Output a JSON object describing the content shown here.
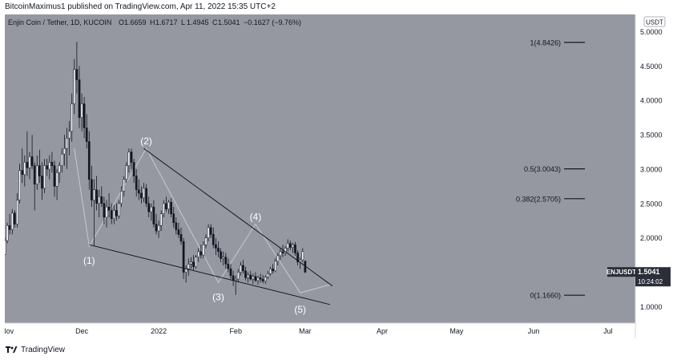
{
  "header": {
    "text": "BitcoinMaximus1 published on TradingView.com, Apr 11, 2022 15:35 UTC+2"
  },
  "footer": {
    "brand": "TradingView",
    "logo_icon": "tradingview-logo-icon"
  },
  "colors": {
    "background": "#9598a1",
    "up": "#ffffff",
    "down": "#131722",
    "line": "#131722",
    "wave_line": "#c7c9cf",
    "text_light": "#ffffff",
    "axis_bg": "#ffffff"
  },
  "chart_data": {
    "type": "candlestick",
    "symbol_line": {
      "symbol": "Enjin Coin / Tether, 1D, KUCOIN",
      "ohlc": [
        {
          "label": "O",
          "value": "1.6659"
        },
        {
          "label": "H",
          "value": "1.6717"
        },
        {
          "label": "L",
          "value": "1.4945"
        },
        {
          "label": "C",
          "value": "1.5041"
        }
      ],
      "change": "−0.1627 (−9.76%)"
    },
    "currency": "USDT",
    "y_ticks": [
      "5.0000",
      "4.5000",
      "4.0000",
      "3.5000",
      "3.0000",
      "2.5000",
      "2.0000",
      "1.5000",
      "1.0000"
    ],
    "x_ticks": [
      "Nov",
      "Dec",
      "2022",
      "Feb",
      "Mar",
      "Apr",
      "May",
      "Jun",
      "Jul"
    ],
    "x_tick_dates": [
      "2021-11-01",
      "2021-12-01",
      "2022-01-01",
      "2022-02-01",
      "2022-03-01",
      "2022-04-01",
      "2022-05-01",
      "2022-06-01",
      "2022-07-01"
    ],
    "ylim": [
      0.76,
      5.25
    ],
    "xlim": [
      "2021-10-31",
      "2022-07-12"
    ],
    "last_price": {
      "ticker": "ENJUSDT",
      "value": "1.5041",
      "countdown": "10:24:02"
    },
    "fib_levels": [
      {
        "label": "1(4.8426)",
        "value": 4.8426
      },
      {
        "label": "0.5(3.0043)",
        "value": 3.0043
      },
      {
        "label": "0.382(2.5705)",
        "value": 2.5705
      },
      {
        "label": "0(1.1660)",
        "value": 1.166
      }
    ],
    "wave_labels": [
      {
        "label": "(1)",
        "date": "2021-12-04",
        "value": 1.88
      },
      {
        "label": "(2)",
        "date": "2021-12-27",
        "value": 3.3
      },
      {
        "label": "(3)",
        "date": "2022-01-25",
        "value": 1.35
      },
      {
        "label": "(4)",
        "date": "2022-02-09",
        "value": 2.2
      },
      {
        "label": "(5)",
        "date": "2022-02-27",
        "value": 1.17
      }
    ],
    "trendlines": [
      {
        "from": {
          "date": "2021-12-04",
          "value": 1.9
        },
        "to": {
          "date": "2022-03-11",
          "value": 1.03
        }
      },
      {
        "from": {
          "date": "2021-12-26",
          "value": 3.3
        },
        "to": {
          "date": "2022-03-12",
          "value": 1.3
        }
      }
    ],
    "wave_path": [
      {
        "date": "2021-11-28",
        "value": 3.3
      },
      {
        "date": "2021-12-04",
        "value": 1.88
      },
      {
        "date": "2021-12-27",
        "value": 3.3
      },
      {
        "date": "2022-01-25",
        "value": 1.35
      },
      {
        "date": "2022-02-09",
        "value": 2.2
      },
      {
        "date": "2022-02-27",
        "value": 1.2
      },
      {
        "date": "2022-03-11",
        "value": 1.32
      }
    ],
    "start_date": "2021-10-31",
    "candles": [
      [
        1.76,
        2.0,
        1.75,
        1.96
      ],
      [
        1.96,
        2.22,
        1.92,
        2.18
      ],
      [
        2.18,
        2.35,
        2.05,
        2.12
      ],
      [
        2.12,
        2.42,
        2.05,
        2.36
      ],
      [
        2.36,
        2.4,
        2.15,
        2.2
      ],
      [
        2.2,
        2.65,
        2.15,
        2.55
      ],
      [
        2.55,
        3.08,
        2.5,
        2.98
      ],
      [
        2.98,
        3.3,
        2.8,
        2.92
      ],
      [
        2.92,
        3.2,
        2.75,
        3.1
      ],
      [
        3.1,
        3.55,
        2.9,
        3.02
      ],
      [
        3.02,
        3.25,
        2.85,
        3.18
      ],
      [
        3.18,
        3.5,
        3.0,
        3.05
      ],
      [
        3.05,
        3.1,
        2.4,
        2.78
      ],
      [
        2.78,
        3.2,
        2.7,
        3.05
      ],
      [
        3.05,
        3.28,
        2.8,
        2.9
      ],
      [
        2.9,
        3.1,
        2.55,
        2.72
      ],
      [
        2.72,
        3.15,
        2.65,
        3.05
      ],
      [
        3.05,
        3.15,
        2.9,
        3.0
      ],
      [
        3.0,
        3.2,
        2.85,
        3.1
      ],
      [
        3.1,
        3.25,
        2.95,
        3.05
      ],
      [
        3.05,
        3.12,
        2.6,
        2.75
      ],
      [
        2.75,
        3.0,
        2.55,
        2.95
      ],
      [
        2.95,
        3.1,
        2.8,
        3.05
      ],
      [
        3.05,
        3.3,
        2.95,
        3.22
      ],
      [
        3.22,
        3.5,
        3.05,
        3.3
      ],
      [
        3.3,
        3.6,
        3.0,
        3.45
      ],
      [
        3.45,
        3.7,
        3.2,
        3.55
      ],
      [
        3.55,
        4.1,
        3.4,
        3.95
      ],
      [
        3.95,
        4.6,
        3.8,
        4.45
      ],
      [
        4.45,
        4.85,
        4.1,
        4.3
      ],
      [
        4.3,
        4.5,
        3.6,
        3.75
      ],
      [
        3.75,
        4.1,
        3.55,
        3.95
      ],
      [
        3.95,
        4.05,
        3.45,
        3.6
      ],
      [
        3.6,
        3.8,
        3.3,
        3.4
      ],
      [
        3.4,
        3.55,
        2.7,
        2.85
      ],
      [
        2.85,
        3.05,
        2.45,
        2.55
      ],
      [
        2.55,
        2.85,
        1.88,
        2.7
      ],
      [
        2.7,
        2.9,
        2.4,
        2.5
      ],
      [
        2.5,
        2.7,
        2.3,
        2.6
      ],
      [
        2.6,
        2.75,
        2.45,
        2.5
      ],
      [
        2.5,
        2.6,
        2.2,
        2.3
      ],
      [
        2.3,
        2.55,
        2.15,
        2.45
      ],
      [
        2.45,
        2.65,
        2.3,
        2.4
      ],
      [
        2.4,
        2.5,
        2.2,
        2.28
      ],
      [
        2.28,
        2.48,
        2.2,
        2.4
      ],
      [
        2.4,
        2.5,
        2.25,
        2.32
      ],
      [
        2.32,
        2.55,
        2.28,
        2.5
      ],
      [
        2.5,
        2.75,
        2.45,
        2.68
      ],
      [
        2.68,
        2.9,
        2.6,
        2.85
      ],
      [
        2.85,
        3.1,
        2.8,
        3.05
      ],
      [
        3.05,
        3.3,
        2.95,
        3.25
      ],
      [
        3.25,
        3.3,
        3.0,
        3.1
      ],
      [
        3.1,
        3.15,
        2.8,
        2.9
      ],
      [
        2.9,
        3.0,
        2.6,
        2.7
      ],
      [
        2.7,
        2.85,
        2.55,
        2.65
      ],
      [
        2.65,
        2.75,
        2.5,
        2.58
      ],
      [
        2.58,
        2.8,
        2.52,
        2.72
      ],
      [
        2.72,
        2.78,
        2.45,
        2.5
      ],
      [
        2.5,
        2.6,
        2.3,
        2.38
      ],
      [
        2.38,
        2.5,
        2.25,
        2.45
      ],
      [
        2.45,
        2.55,
        2.15,
        2.2
      ],
      [
        2.2,
        2.35,
        2.05,
        2.1
      ],
      [
        2.1,
        2.25,
        2.0,
        2.18
      ],
      [
        2.18,
        2.4,
        2.1,
        2.35
      ],
      [
        2.35,
        2.55,
        2.3,
        2.5
      ],
      [
        2.5,
        2.6,
        2.38,
        2.42
      ],
      [
        2.42,
        2.55,
        2.35,
        2.52
      ],
      [
        2.52,
        2.58,
        2.3,
        2.35
      ],
      [
        2.35,
        2.45,
        2.15,
        2.22
      ],
      [
        2.22,
        2.3,
        2.05,
        2.12
      ],
      [
        2.12,
        2.22,
        2.0,
        2.05
      ],
      [
        2.05,
        2.15,
        1.9,
        1.95
      ],
      [
        1.95,
        2.0,
        1.4,
        1.5
      ],
      [
        1.5,
        1.6,
        1.35,
        1.55
      ],
      [
        1.55,
        1.7,
        1.45,
        1.62
      ],
      [
        1.62,
        1.72,
        1.55,
        1.65
      ],
      [
        1.65,
        1.75,
        1.52,
        1.58
      ],
      [
        1.58,
        1.75,
        1.55,
        1.72
      ],
      [
        1.72,
        1.85,
        1.65,
        1.8
      ],
      [
        1.8,
        1.9,
        1.7,
        1.75
      ],
      [
        1.75,
        1.95,
        1.7,
        1.9
      ],
      [
        1.9,
        2.05,
        1.85,
        2.0
      ],
      [
        2.0,
        2.2,
        1.95,
        2.15
      ],
      [
        2.15,
        2.2,
        2.0,
        2.05
      ],
      [
        2.05,
        2.15,
        1.85,
        1.9
      ],
      [
        1.9,
        2.0,
        1.75,
        1.85
      ],
      [
        1.85,
        1.95,
        1.72,
        1.8
      ],
      [
        1.8,
        1.85,
        1.65,
        1.7
      ],
      [
        1.7,
        1.8,
        1.6,
        1.72
      ],
      [
        1.72,
        1.78,
        1.55,
        1.62
      ],
      [
        1.62,
        1.7,
        1.5,
        1.55
      ],
      [
        1.55,
        1.62,
        1.4,
        1.45
      ],
      [
        1.45,
        1.52,
        1.3,
        1.38
      ],
      [
        1.38,
        1.45,
        1.17,
        1.4
      ],
      [
        1.4,
        1.55,
        1.35,
        1.5
      ],
      [
        1.5,
        1.65,
        1.45,
        1.6
      ],
      [
        1.6,
        1.68,
        1.48,
        1.52
      ],
      [
        1.52,
        1.58,
        1.38,
        1.42
      ],
      [
        1.42,
        1.5,
        1.35,
        1.46
      ],
      [
        1.46,
        1.52,
        1.38,
        1.4
      ],
      [
        1.4,
        1.48,
        1.33,
        1.44
      ],
      [
        1.44,
        1.5,
        1.36,
        1.38
      ],
      [
        1.38,
        1.45,
        1.32,
        1.42
      ],
      [
        1.42,
        1.48,
        1.35,
        1.4
      ],
      [
        1.4,
        1.46,
        1.34,
        1.37
      ],
      [
        1.37,
        1.45,
        1.33,
        1.43
      ],
      [
        1.43,
        1.52,
        1.4,
        1.48
      ],
      [
        1.48,
        1.58,
        1.45,
        1.55
      ],
      [
        1.55,
        1.62,
        1.48,
        1.52
      ],
      [
        1.52,
        1.7,
        1.5,
        1.66
      ],
      [
        1.66,
        1.78,
        1.6,
        1.74
      ],
      [
        1.74,
        1.85,
        1.68,
        1.8
      ],
      [
        1.8,
        1.9,
        1.72,
        1.78
      ],
      [
        1.78,
        1.88,
        1.74,
        1.85
      ],
      [
        1.85,
        1.98,
        1.8,
        1.92
      ],
      [
        1.92,
        1.96,
        1.82,
        1.86
      ],
      [
        1.86,
        1.93,
        1.78,
        1.9
      ],
      [
        1.9,
        1.94,
        1.74,
        1.78
      ],
      [
        1.78,
        1.82,
        1.6,
        1.65
      ],
      [
        1.65,
        1.72,
        1.55,
        1.68
      ],
      [
        1.68,
        1.85,
        1.65,
        1.8
      ],
      [
        1.66,
        1.67,
        1.49,
        1.5
      ]
    ]
  }
}
